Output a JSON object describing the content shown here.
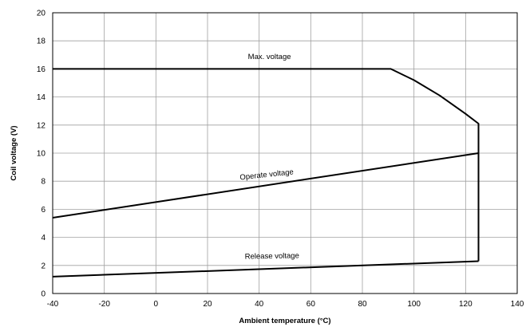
{
  "chart_data": {
    "type": "line",
    "title": "",
    "xlabel": "Ambient temperature (°C)",
    "ylabel": "Coil voltage (V)",
    "xlim": [
      -40,
      140
    ],
    "ylim": [
      0,
      20
    ],
    "xticks": [
      -40,
      -20,
      0,
      20,
      40,
      60,
      80,
      100,
      120,
      140
    ],
    "yticks": [
      0,
      2,
      4,
      6,
      8,
      10,
      12,
      14,
      16,
      18,
      20
    ],
    "grid": true,
    "legend": "none",
    "colors": {
      "line": "#000000",
      "grid": "#a0a0a0",
      "axis": "#000000"
    },
    "series": [
      {
        "name": "Max. voltage",
        "points": [
          [
            -40,
            16
          ],
          [
            91,
            16
          ],
          [
            100,
            15.2
          ],
          [
            110,
            14.1
          ],
          [
            120,
            12.8
          ],
          [
            125,
            12.1
          ],
          [
            125,
            10
          ]
        ]
      },
      {
        "name": "Operate voltage",
        "points": [
          [
            -40,
            5.4
          ],
          [
            125,
            10
          ],
          [
            125,
            2.3
          ]
        ]
      },
      {
        "name": "Release voltage",
        "points": [
          [
            -40,
            1.2
          ],
          [
            125,
            2.3
          ]
        ]
      }
    ],
    "annotations": [
      {
        "text": "Max. voltage",
        "x": 44,
        "y": 16.7,
        "angle": 0
      },
      {
        "text": "Operate voltage",
        "x": 43,
        "y": 8.3,
        "angle": -6
      },
      {
        "text": "Release voltage",
        "x": 45,
        "y": 2.5,
        "angle": -1
      }
    ]
  }
}
